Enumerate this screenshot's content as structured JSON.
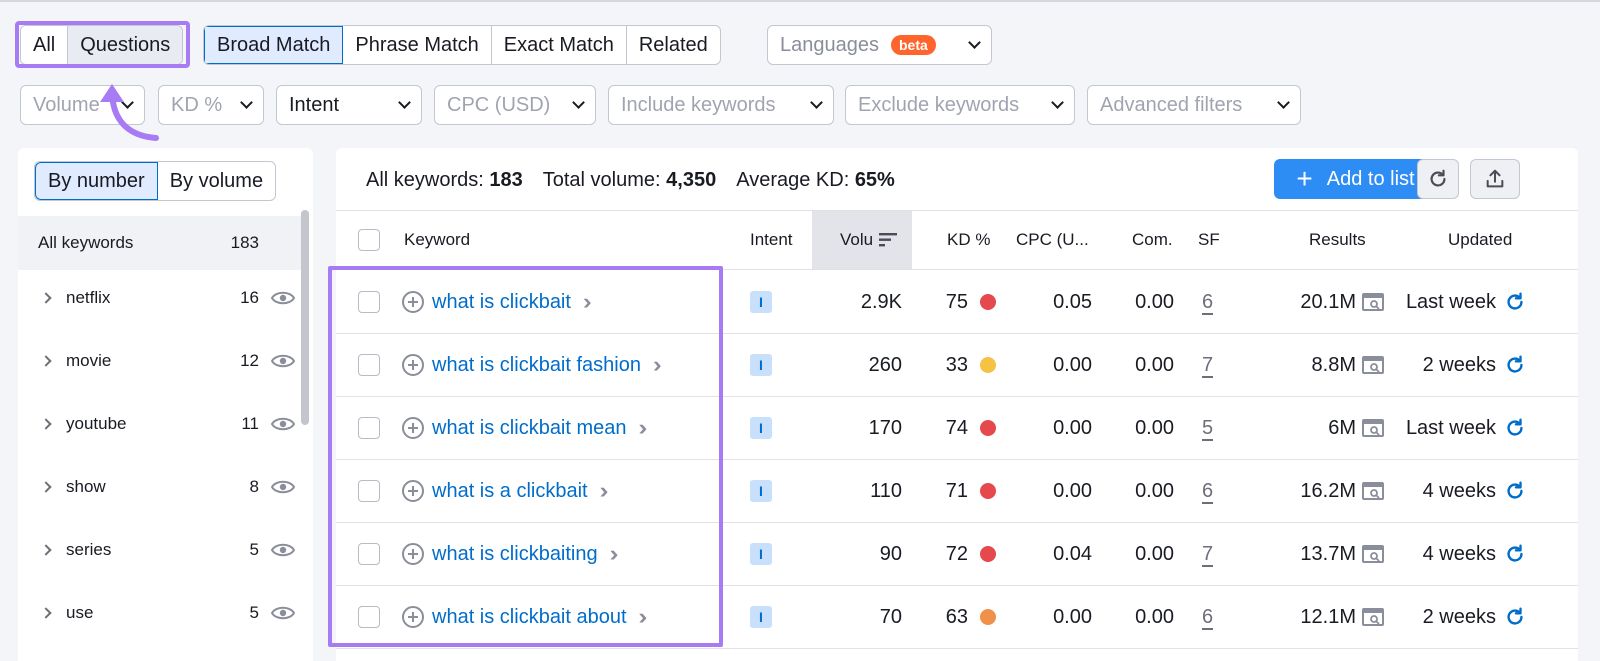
{
  "tabs_row1": {
    "type_tabs": [
      "All",
      "Questions"
    ],
    "match_tabs": [
      "Broad Match",
      "Phrase Match",
      "Exact Match",
      "Related"
    ],
    "languages_label": "Languages",
    "beta_badge": "beta"
  },
  "filters": [
    "Volume",
    "KD %",
    "Intent",
    "CPC (USD)",
    "Include keywords",
    "Exclude keywords",
    "Advanced filters"
  ],
  "sidebar": {
    "toggle": [
      "By number",
      "By volume"
    ],
    "all_keywords_label": "All keywords",
    "all_keywords_count": "183",
    "groups": [
      {
        "label": "netflix",
        "count": "16"
      },
      {
        "label": "movie",
        "count": "12"
      },
      {
        "label": "youtube",
        "count": "11"
      },
      {
        "label": "show",
        "count": "8"
      },
      {
        "label": "series",
        "count": "5"
      },
      {
        "label": "use",
        "count": "5"
      }
    ]
  },
  "summary": {
    "all_keywords_label": "All keywords:",
    "all_keywords_value": "183",
    "total_volume_label": "Total volume:",
    "total_volume_value": "4,350",
    "avg_kd_label": "Average KD:",
    "avg_kd_value": "65%"
  },
  "toolbar": {
    "add_to_list": "Add to list"
  },
  "table": {
    "headers": {
      "keyword": "Keyword",
      "intent": "Intent",
      "volume": "Volu",
      "kd": "KD %",
      "cpc": "CPC (U...",
      "com": "Com.",
      "sf": "SF",
      "results": "Results",
      "updated": "Updated"
    },
    "rows": [
      {
        "keyword": "what is clickbait",
        "intent": "I",
        "volume": "2.9K",
        "kd": "75",
        "kd_color": "#e5484d",
        "cpc": "0.05",
        "com": "0.00",
        "sf": "6",
        "results": "20.1M",
        "updated": "Last week"
      },
      {
        "keyword": "what is clickbait fashion",
        "intent": "I",
        "volume": "260",
        "kd": "33",
        "kd_color": "#f5c243",
        "cpc": "0.00",
        "com": "0.00",
        "sf": "7",
        "results": "8.8M",
        "updated": "2 weeks"
      },
      {
        "keyword": "what is clickbait mean",
        "intent": "I",
        "volume": "170",
        "kd": "74",
        "kd_color": "#e5484d",
        "cpc": "0.00",
        "com": "0.00",
        "sf": "5",
        "results": "6M",
        "updated": "Last week"
      },
      {
        "keyword": "what is a clickbait",
        "intent": "I",
        "volume": "110",
        "kd": "71",
        "kd_color": "#e5484d",
        "cpc": "0.00",
        "com": "0.00",
        "sf": "6",
        "results": "16.2M",
        "updated": "4 weeks"
      },
      {
        "keyword": "what is clickbaiting",
        "intent": "I",
        "volume": "90",
        "kd": "72",
        "kd_color": "#e5484d",
        "cpc": "0.04",
        "com": "0.00",
        "sf": "7",
        "results": "13.7M",
        "updated": "4 weeks"
      },
      {
        "keyword": "what is clickbait about",
        "intent": "I",
        "volume": "70",
        "kd": "63",
        "kd_color": "#f0914a",
        "cpc": "0.00",
        "com": "0.00",
        "sf": "6",
        "results": "12.1M",
        "updated": "2 weeks"
      }
    ]
  },
  "colors": {
    "accent": "#2e8df4",
    "highlight": "#a77bf3",
    "link": "#006dca"
  }
}
